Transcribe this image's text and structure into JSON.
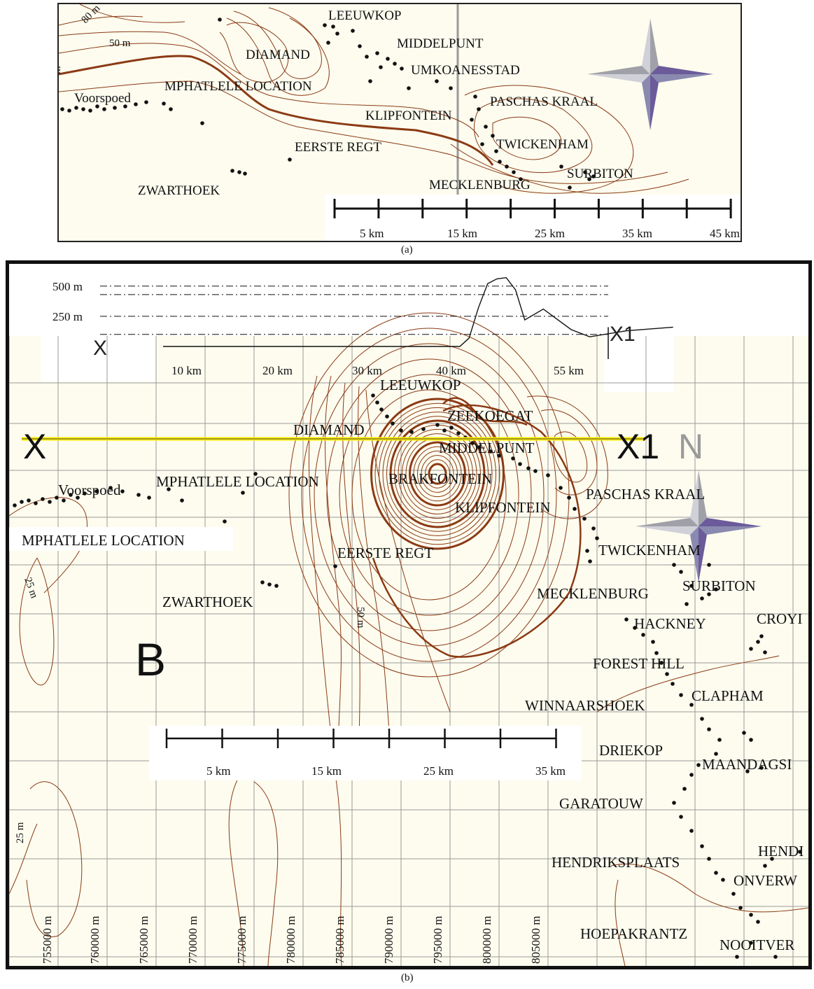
{
  "captions": {
    "a": "(a)",
    "b": "(b)"
  },
  "colors": {
    "contour": "#8b3a14",
    "grid": "#9a9a9a",
    "profile_line": "#ffee00",
    "map_bg": "#fdfcef",
    "compass_purple": "#6b5b9a",
    "compass_gray": "#a0a0a8"
  },
  "map_a": {
    "place_labels": [
      "LEEUWKOP",
      "MIDDELPUNT",
      "DIAMAND",
      "UMKOANESSTAD",
      "MPHATLELE LOCATION",
      "Voorspoed",
      "PASCHAS KRAAL",
      "KLIPFONTEIN",
      "EERSTE REGT",
      "TWICKENHAM",
      "SURBITON",
      "ZWARTHOEK",
      "MECKLENBURG"
    ],
    "contour_labels": [
      "80 m",
      "50 m",
      "m"
    ],
    "scale_labels": [
      "5 km",
      "15 km",
      "25 km",
      "35 km",
      "45 km"
    ],
    "compass_icon": "compass-rose-icon"
  },
  "profile": {
    "y_labels": [
      "500 m",
      "250 m"
    ],
    "x_labels": [
      "10 km",
      "20 km",
      "30 km",
      "40 km",
      "55 km"
    ],
    "start_label": "X",
    "end_label": "X1",
    "elevation_points_m": [
      [
        0,
        0
      ],
      [
        32,
        0
      ],
      [
        33,
        70
      ],
      [
        34,
        320
      ],
      [
        35,
        520
      ],
      [
        36,
        560
      ],
      [
        37,
        570
      ],
      [
        38,
        470
      ],
      [
        39,
        220
      ],
      [
        41,
        310
      ],
      [
        44,
        140
      ],
      [
        46,
        80
      ],
      [
        50,
        130
      ],
      [
        55,
        160
      ]
    ]
  },
  "map_b": {
    "place_labels": [
      "LEEUWKOP",
      "ZEEKOEGAT",
      "DIAMAND",
      "MIDDELPUNT",
      "BRAKFONTEIN",
      "KLIPFONTEIN",
      "PASCHAS KRAAL",
      "MPHATLELE LOCATION",
      "Voorspoed",
      "MPHATLELE LOCATION",
      "EERSTE REGT",
      "TWICKENHAM",
      "SURBITON",
      "MECKLENBURG",
      "ZWARTHOEK",
      "HACKNEY",
      "CROYI",
      "FOREST HILL",
      "CLAPHAM",
      "WINNAARSHOEK",
      "DRIEKOP",
      "MAANDAGSI",
      "GARATOUW",
      "HENDI",
      "HENDRIKSPLAATS",
      "ONVERW",
      "HOEPAKRANTZ",
      "NOOITVER"
    ],
    "section_start": "X",
    "section_end": "X1",
    "north_letter": "N",
    "area_letter": "B",
    "contour_labels": [
      "25 m",
      "50 m",
      "25 m"
    ],
    "scale_labels": [
      "5 km",
      "15 km",
      "25 km",
      "35 km"
    ],
    "easting_labels": [
      "755000 m",
      "760000 m",
      "765000 m",
      "770000 m",
      "775000 m",
      "780000 m",
      "785000 m",
      "790000 m",
      "795000 m",
      "800000 m",
      "805000 m"
    ],
    "compass_icon": "compass-rose-icon"
  }
}
